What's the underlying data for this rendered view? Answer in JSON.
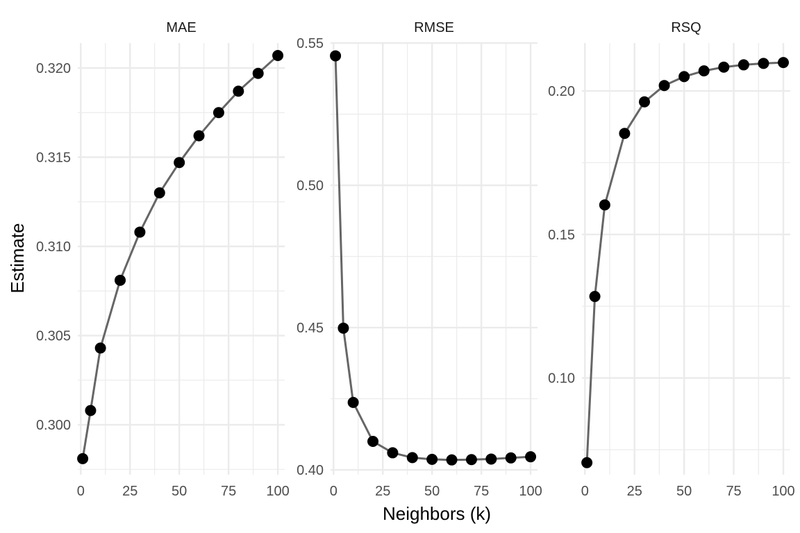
{
  "chart_data": [
    {
      "type": "line",
      "title": "MAE",
      "x": [
        1,
        5,
        10,
        20,
        30,
        40,
        50,
        60,
        70,
        80,
        90,
        100
      ],
      "values": [
        0.2981,
        0.3008,
        0.3043,
        0.3081,
        0.3108,
        0.313,
        0.3147,
        0.3162,
        0.3175,
        0.3187,
        0.3197,
        0.3207
      ],
      "xlim": [
        -1.5,
        103.5
      ],
      "ylim": [
        0.2972,
        0.3214
      ],
      "yticks": [
        0.3,
        0.305,
        0.31,
        0.315,
        0.32
      ],
      "ytick_labels": [
        "0.300",
        "0.305",
        "0.310",
        "0.315",
        "0.320"
      ],
      "xticks": [
        0,
        25,
        50,
        75,
        100
      ],
      "xtick_labels": [
        "0",
        "25",
        "50",
        "75",
        "100"
      ]
    },
    {
      "type": "line",
      "title": "RMSE",
      "x": [
        1,
        5,
        10,
        20,
        30,
        40,
        50,
        60,
        70,
        80,
        90,
        100
      ],
      "values": [
        0.5455,
        0.4498,
        0.4237,
        0.41,
        0.406,
        0.4043,
        0.4037,
        0.4035,
        0.4036,
        0.4038,
        0.4042,
        0.4046
      ],
      "xlim": [
        -1.5,
        103.5
      ],
      "ylim": [
        0.3983,
        0.55
      ],
      "yticks": [
        0.4,
        0.45,
        0.5,
        0.55
      ],
      "ytick_labels": [
        "0.40",
        "0.45",
        "0.50",
        "0.55"
      ],
      "xticks": [
        0,
        25,
        50,
        75,
        100
      ],
      "xtick_labels": [
        "0",
        "25",
        "50",
        "75",
        "100"
      ]
    },
    {
      "type": "line",
      "title": "RSQ",
      "x": [
        1,
        5,
        10,
        20,
        30,
        40,
        50,
        60,
        70,
        80,
        90,
        100
      ],
      "values": [
        0.0705,
        0.1284,
        0.1603,
        0.1852,
        0.1962,
        0.2019,
        0.205,
        0.207,
        0.2083,
        0.2091,
        0.2096,
        0.2099
      ],
      "xlim": [
        -1.5,
        103.5
      ],
      "ylim": [
        0.0663,
        0.2167
      ],
      "yticks": [
        0.1,
        0.15,
        0.2
      ],
      "ytick_labels": [
        "0.10",
        "0.15",
        "0.20"
      ],
      "xticks": [
        0,
        25,
        50,
        75,
        100
      ],
      "xtick_labels": [
        "0",
        "25",
        "50",
        "75",
        "100"
      ]
    }
  ],
  "xlabel": "Neighbors (k)",
  "ylabel": "Estimate",
  "grid": true,
  "colors": {
    "line": "#666666",
    "point": "#000000",
    "grid": "#ebebeb"
  }
}
